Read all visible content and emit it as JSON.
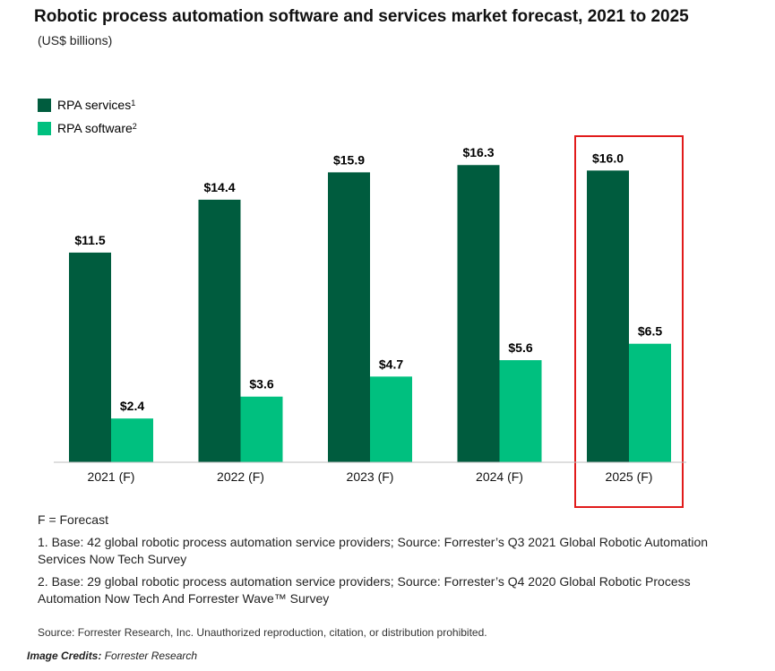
{
  "colors": {
    "services": "#005c3e",
    "software": "#00c07f",
    "highlight": "#e11b1b"
  },
  "chart_data": {
    "type": "bar",
    "title": "Robotic process automation software and services market forecast, 2021 to 2025",
    "subtitle": "(US$ billions)",
    "categories": [
      "2021 (F)",
      "2022 (F)",
      "2023 (F)",
      "2024 (F)",
      "2025 (F)"
    ],
    "series": [
      {
        "name": "RPA services",
        "footnote": "1",
        "values": [
          11.5,
          14.4,
          15.9,
          16.3,
          16.0
        ],
        "labels": [
          "$11.5",
          "$14.4",
          "$15.9",
          "$16.3",
          "$16.0"
        ]
      },
      {
        "name": "RPA software",
        "footnote": "2",
        "values": [
          2.4,
          3.6,
          4.7,
          5.6,
          6.5
        ],
        "labels": [
          "$2.4",
          "$3.6",
          "$4.7",
          "$5.6",
          "$6.5"
        ]
      }
    ],
    "ylim": [
      0,
      17
    ],
    "highlighted_category": "2025 (F)",
    "legend_position": "top-left"
  },
  "notes": {
    "forecast": "F = Forecast",
    "note1": "1. Base: 42 global robotic process automation service providers; Source: Forrester’s Q3 2021 Global Robotic Automation Services Now Tech Survey",
    "note2": "2. Base: 29 global robotic process automation service providers; Source: Forrester’s Q4 2020 Global Robotic Process Automation Now Tech And Forrester Wave™ Survey"
  },
  "source": "Source: Forrester Research, Inc. Unauthorized reproduction, citation, or distribution prohibited.",
  "credits": {
    "label": "Image Credits:",
    "value": "Forrester Research"
  }
}
